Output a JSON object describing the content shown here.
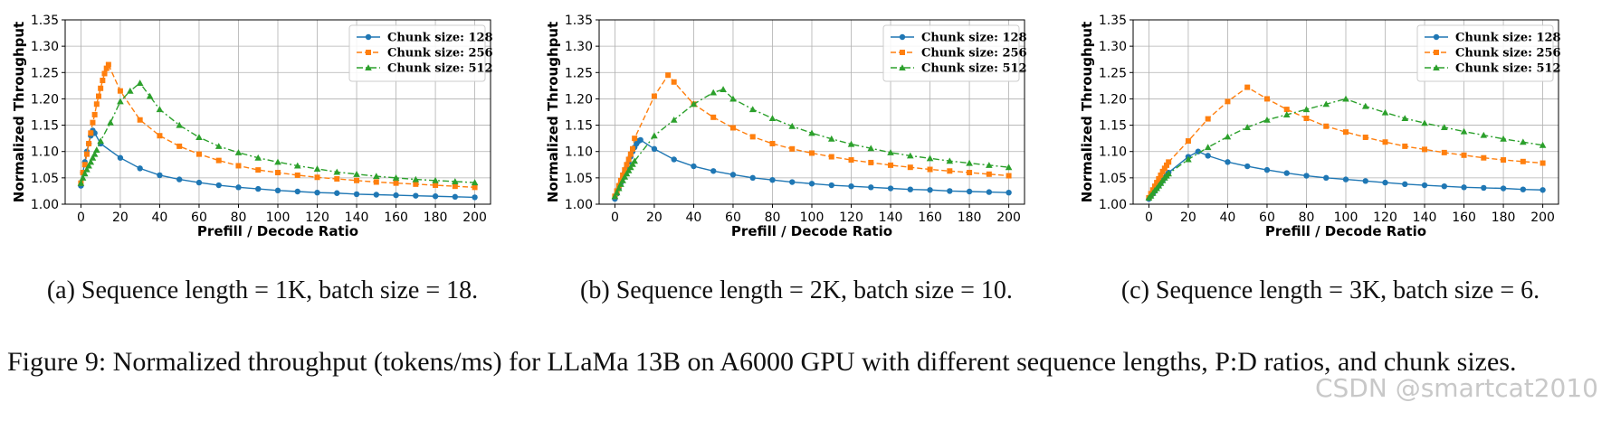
{
  "figure": {
    "caption": "Figure 9: Normalized throughput (tokens/ms) for LLaMa 13B on A6000 GPU with different sequence lengths, P:D ratios, and chunk sizes.",
    "watermark": "CSDN @smartcat2010"
  },
  "chart_data": [
    {
      "type": "line",
      "subcaption": "(a) Sequence length = 1K, batch size = 18.",
      "xlabel": "Prefill / Decode Ratio",
      "ylabel": "Normalized Throughput",
      "xlim": [
        -8,
        208
      ],
      "ylim": [
        1.0,
        1.35
      ],
      "xticks": [
        0,
        20,
        40,
        60,
        80,
        100,
        120,
        140,
        160,
        180,
        200
      ],
      "yticks": [
        1.0,
        1.05,
        1.1,
        1.15,
        1.2,
        1.25,
        1.3,
        1.35
      ],
      "ytick_labels": [
        "1.00",
        "1.05",
        "1.10",
        "1.15",
        "1.20",
        "1.25",
        "1.30",
        "1.35"
      ],
      "grid": true,
      "legend_position": "top-right",
      "series": [
        {
          "name": "Chunk size: 128",
          "color": "#1f77b4",
          "marker": "circle",
          "dash": "solid",
          "x": [
            0,
            1,
            2,
            3,
            4,
            5,
            6,
            7,
            10,
            20,
            30,
            40,
            50,
            60,
            70,
            80,
            90,
            100,
            110,
            120,
            130,
            140,
            150,
            160,
            170,
            180,
            190,
            200
          ],
          "y": [
            1.035,
            1.06,
            1.08,
            1.1,
            1.115,
            1.13,
            1.14,
            1.135,
            1.115,
            1.088,
            1.068,
            1.055,
            1.047,
            1.041,
            1.036,
            1.032,
            1.029,
            1.026,
            1.024,
            1.022,
            1.021,
            1.019,
            1.018,
            1.017,
            1.016,
            1.015,
            1.014,
            1.013
          ]
        },
        {
          "name": "Chunk size: 256",
          "color": "#ff7f0e",
          "marker": "square",
          "dash": "dashed",
          "x": [
            0,
            1,
            2,
            3,
            4,
            5,
            6,
            7,
            8,
            9,
            10,
            11,
            12,
            13,
            14,
            20,
            30,
            40,
            50,
            60,
            70,
            80,
            90,
            100,
            110,
            120,
            130,
            140,
            150,
            160,
            170,
            180,
            190,
            200
          ],
          "y": [
            1.04,
            1.06,
            1.075,
            1.095,
            1.115,
            1.135,
            1.155,
            1.17,
            1.19,
            1.205,
            1.22,
            1.235,
            1.248,
            1.258,
            1.265,
            1.215,
            1.16,
            1.13,
            1.11,
            1.095,
            1.083,
            1.073,
            1.065,
            1.06,
            1.055,
            1.051,
            1.048,
            1.045,
            1.042,
            1.04,
            1.038,
            1.036,
            1.034,
            1.032
          ]
        },
        {
          "name": "Chunk size: 512",
          "color": "#2ca02c",
          "marker": "triangle",
          "dash": "dashdot",
          "x": [
            0,
            1,
            2,
            3,
            4,
            5,
            6,
            7,
            8,
            10,
            15,
            20,
            25,
            30,
            35,
            40,
            50,
            60,
            70,
            80,
            90,
            100,
            110,
            120,
            130,
            140,
            150,
            160,
            170,
            180,
            190,
            200
          ],
          "y": [
            1.04,
            1.05,
            1.058,
            1.066,
            1.073,
            1.08,
            1.088,
            1.095,
            1.103,
            1.12,
            1.155,
            1.195,
            1.215,
            1.23,
            1.205,
            1.18,
            1.15,
            1.127,
            1.11,
            1.098,
            1.088,
            1.08,
            1.073,
            1.067,
            1.061,
            1.057,
            1.053,
            1.05,
            1.047,
            1.045,
            1.043,
            1.041
          ]
        }
      ]
    },
    {
      "type": "line",
      "subcaption": "(b) Sequence length = 2K, batch size = 10.",
      "xlabel": "Prefill / Decode Ratio",
      "ylabel": "Normalized Throughput",
      "xlim": [
        -8,
        208
      ],
      "ylim": [
        1.0,
        1.35
      ],
      "xticks": [
        0,
        20,
        40,
        60,
        80,
        100,
        120,
        140,
        160,
        180,
        200
      ],
      "yticks": [
        1.0,
        1.05,
        1.1,
        1.15,
        1.2,
        1.25,
        1.3,
        1.35
      ],
      "ytick_labels": [
        "1.00",
        "1.05",
        "1.10",
        "1.15",
        "1.20",
        "1.25",
        "1.30",
        "1.35"
      ],
      "grid": true,
      "legend_position": "top-right",
      "series": [
        {
          "name": "Chunk size: 128",
          "color": "#1f77b4",
          "marker": "circle",
          "dash": "solid",
          "x": [
            0,
            1,
            2,
            3,
            4,
            5,
            6,
            7,
            8,
            9,
            10,
            11,
            12,
            13,
            20,
            30,
            40,
            50,
            60,
            70,
            80,
            90,
            100,
            110,
            120,
            130,
            140,
            150,
            160,
            170,
            180,
            190,
            200
          ],
          "y": [
            1.01,
            1.02,
            1.03,
            1.04,
            1.05,
            1.06,
            1.07,
            1.08,
            1.09,
            1.1,
            1.108,
            1.115,
            1.12,
            1.122,
            1.105,
            1.085,
            1.072,
            1.063,
            1.056,
            1.05,
            1.046,
            1.042,
            1.039,
            1.036,
            1.034,
            1.032,
            1.03,
            1.028,
            1.027,
            1.025,
            1.024,
            1.023,
            1.022
          ]
        },
        {
          "name": "Chunk size: 256",
          "color": "#ff7f0e",
          "marker": "square",
          "dash": "dashed",
          "x": [
            0,
            1,
            2,
            3,
            4,
            5,
            6,
            7,
            8,
            9,
            10,
            20,
            27,
            30,
            40,
            50,
            60,
            70,
            80,
            90,
            100,
            110,
            120,
            130,
            140,
            150,
            160,
            170,
            180,
            190,
            200
          ],
          "y": [
            1.015,
            1.025,
            1.035,
            1.045,
            1.055,
            1.065,
            1.075,
            1.085,
            1.095,
            1.105,
            1.125,
            1.205,
            1.245,
            1.232,
            1.19,
            1.165,
            1.145,
            1.128,
            1.115,
            1.105,
            1.097,
            1.09,
            1.084,
            1.079,
            1.074,
            1.07,
            1.066,
            1.063,
            1.06,
            1.057,
            1.054
          ]
        },
        {
          "name": "Chunk size: 512",
          "color": "#2ca02c",
          "marker": "triangle",
          "dash": "dashdot",
          "x": [
            0,
            1,
            2,
            3,
            4,
            5,
            6,
            7,
            8,
            9,
            10,
            20,
            30,
            40,
            50,
            55,
            60,
            70,
            80,
            90,
            100,
            110,
            120,
            130,
            140,
            150,
            160,
            170,
            180,
            190,
            200
          ],
          "y": [
            1.015,
            1.022,
            1.03,
            1.038,
            1.045,
            1.052,
            1.058,
            1.064,
            1.07,
            1.076,
            1.082,
            1.13,
            1.16,
            1.19,
            1.212,
            1.218,
            1.2,
            1.18,
            1.163,
            1.148,
            1.135,
            1.124,
            1.114,
            1.106,
            1.098,
            1.092,
            1.087,
            1.082,
            1.078,
            1.074,
            1.07
          ]
        }
      ]
    },
    {
      "type": "line",
      "subcaption": "(c) Sequence length = 3K, batch size = 6.",
      "xlabel": "Prefill / Decode Ratio",
      "ylabel": "Normalized Throughput",
      "xlim": [
        -8,
        208
      ],
      "ylim": [
        1.0,
        1.35
      ],
      "xticks": [
        0,
        20,
        40,
        60,
        80,
        100,
        120,
        140,
        160,
        180,
        200
      ],
      "yticks": [
        1.0,
        1.05,
        1.1,
        1.15,
        1.2,
        1.25,
        1.3,
        1.35
      ],
      "ytick_labels": [
        "1.00",
        "1.05",
        "1.10",
        "1.15",
        "1.20",
        "1.25",
        "1.30",
        "1.35"
      ],
      "grid": true,
      "legend_position": "top-right",
      "series": [
        {
          "name": "Chunk size: 128",
          "color": "#1f77b4",
          "marker": "circle",
          "dash": "solid",
          "x": [
            0,
            1,
            2,
            3,
            4,
            5,
            6,
            7,
            8,
            9,
            10,
            20,
            25,
            30,
            40,
            50,
            60,
            70,
            80,
            90,
            100,
            110,
            120,
            130,
            140,
            150,
            160,
            170,
            180,
            190,
            200
          ],
          "y": [
            1.01,
            1.015,
            1.02,
            1.025,
            1.03,
            1.035,
            1.04,
            1.045,
            1.05,
            1.055,
            1.06,
            1.09,
            1.1,
            1.092,
            1.08,
            1.072,
            1.065,
            1.059,
            1.054,
            1.05,
            1.047,
            1.044,
            1.041,
            1.038,
            1.036,
            1.034,
            1.032,
            1.031,
            1.03,
            1.028,
            1.027
          ]
        },
        {
          "name": "Chunk size: 256",
          "color": "#ff7f0e",
          "marker": "square",
          "dash": "dashed",
          "x": [
            0,
            1,
            2,
            3,
            4,
            5,
            6,
            7,
            8,
            9,
            10,
            20,
            30,
            40,
            50,
            60,
            70,
            80,
            90,
            100,
            110,
            120,
            130,
            140,
            150,
            160,
            170,
            180,
            190,
            200
          ],
          "y": [
            1.012,
            1.02,
            1.027,
            1.034,
            1.041,
            1.048,
            1.055,
            1.062,
            1.068,
            1.074,
            1.08,
            1.12,
            1.162,
            1.195,
            1.222,
            1.2,
            1.18,
            1.163,
            1.148,
            1.137,
            1.127,
            1.118,
            1.11,
            1.104,
            1.098,
            1.093,
            1.088,
            1.084,
            1.081,
            1.078
          ]
        },
        {
          "name": "Chunk size: 512",
          "color": "#2ca02c",
          "marker": "triangle",
          "dash": "dashdot",
          "x": [
            0,
            1,
            2,
            3,
            4,
            5,
            6,
            7,
            8,
            9,
            10,
            20,
            30,
            40,
            50,
            60,
            70,
            80,
            90,
            100,
            110,
            120,
            130,
            140,
            150,
            160,
            170,
            180,
            190,
            200
          ],
          "y": [
            1.012,
            1.016,
            1.021,
            1.026,
            1.03,
            1.035,
            1.04,
            1.045,
            1.05,
            1.054,
            1.058,
            1.085,
            1.108,
            1.128,
            1.146,
            1.16,
            1.17,
            1.18,
            1.19,
            1.2,
            1.186,
            1.174,
            1.163,
            1.154,
            1.146,
            1.138,
            1.131,
            1.124,
            1.118,
            1.112
          ]
        }
      ]
    }
  ]
}
